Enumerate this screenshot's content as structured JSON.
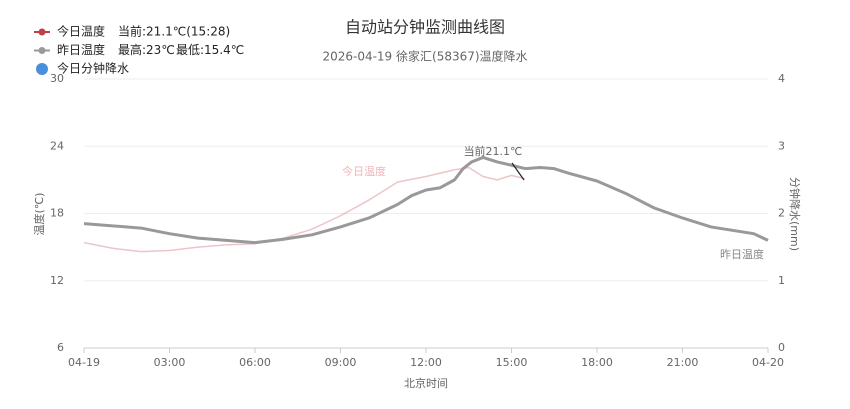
{
  "chart_data": {
    "type": "line",
    "title": "自动站分钟监测曲线图",
    "subtitle": "2026-04-19 徐家汇(58367)温度降水",
    "xlabel": "北京时间",
    "ylabel": "温度(℃)",
    "y2label": "分钟降水(mm)",
    "xlim": [
      0,
      24
    ],
    "xticks": [
      {
        "value": 0,
        "label": "04-19"
      },
      {
        "value": 3,
        "label": "03:00"
      },
      {
        "value": 6,
        "label": "06:00"
      },
      {
        "value": 9,
        "label": "09:00"
      },
      {
        "value": 12,
        "label": "12:00"
      },
      {
        "value": 15,
        "label": "15:00"
      },
      {
        "value": 18,
        "label": "18:00"
      },
      {
        "value": 21,
        "label": "21:00"
      },
      {
        "value": 24,
        "label": "04-20"
      }
    ],
    "ylim": [
      6,
      30
    ],
    "yticks": [
      6,
      12,
      18,
      24,
      30
    ],
    "y2lim": [
      0,
      4
    ],
    "y2ticks": [
      0,
      1,
      2,
      3,
      4
    ],
    "grid": true,
    "legend": "top-left",
    "series": [
      {
        "name": "今日温度",
        "color": "#c0404a",
        "notes": [
          "当前:21.1℃(15:28)"
        ],
        "x": [
          0,
          1,
          2,
          3,
          4,
          5,
          6,
          7,
          8,
          9,
          10,
          11,
          12,
          13,
          13.5,
          14,
          14.5,
          15,
          15.47
        ],
        "values": [
          15.4,
          14.9,
          14.6,
          14.7,
          15.0,
          15.2,
          15.3,
          15.8,
          16.6,
          17.8,
          19.2,
          20.8,
          21.3,
          21.9,
          22.1,
          21.3,
          21.0,
          21.4,
          21.1
        ]
      },
      {
        "name": "昨日温度",
        "color": "#999999",
        "notes": [
          "最高:23℃",
          "最低:15.4℃"
        ],
        "x": [
          0,
          1,
          2,
          3,
          4,
          5,
          6,
          7,
          8,
          9,
          10,
          10.5,
          11,
          11.5,
          12,
          12.5,
          13,
          13.3,
          13.6,
          14,
          14.5,
          15,
          15.5,
          16,
          16.5,
          17,
          18,
          19,
          20,
          21,
          22,
          23,
          23.5,
          24
        ],
        "values": [
          17.1,
          16.9,
          16.7,
          16.2,
          15.8,
          15.6,
          15.4,
          15.7,
          16.1,
          16.8,
          17.6,
          18.2,
          18.8,
          19.6,
          20.1,
          20.3,
          21.0,
          22.0,
          22.6,
          23.0,
          22.6,
          22.3,
          22.0,
          22.1,
          22.0,
          21.6,
          20.9,
          19.8,
          18.5,
          17.6,
          16.8,
          16.4,
          16.2,
          15.6
        ]
      },
      {
        "name": "今日分钟降水",
        "color": "#4a8fdc",
        "axis": "y2",
        "x": [],
        "values": []
      }
    ],
    "annotations": [
      "当前21.1℃",
      "今日温度",
      "昨日温度"
    ]
  }
}
